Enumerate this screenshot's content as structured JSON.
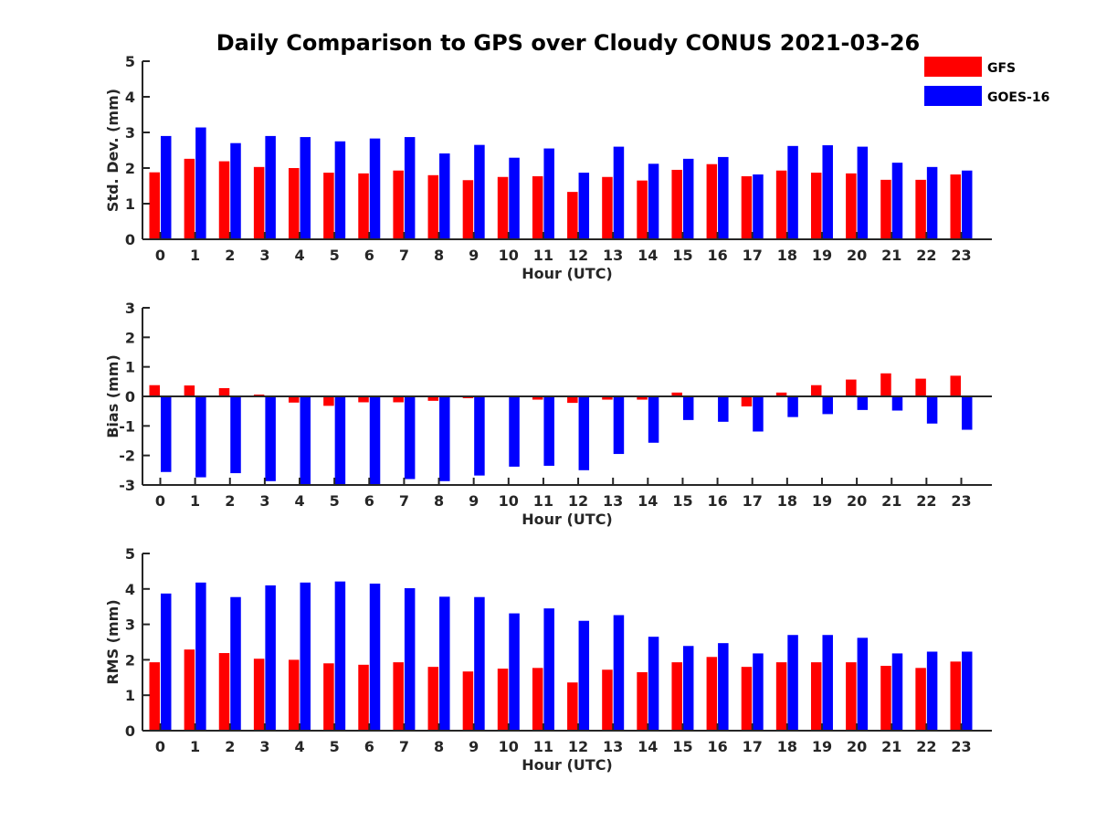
{
  "chart_data": {
    "title": "Daily Comparison to GPS over Cloudy CONUS 2021-03-26",
    "legend": {
      "placement": "top-right",
      "entries": [
        {
          "name": "GFS",
          "color": "#ff0000"
        },
        {
          "name": "GOES-16",
          "color": "#0000ff"
        }
      ]
    },
    "panels": [
      {
        "type": "bar",
        "ylabel": "Std. Dev. (mm)",
        "xlabel": "Hour (UTC)",
        "ylim": [
          0,
          5
        ],
        "yticks": [
          0,
          1,
          2,
          3,
          4,
          5
        ],
        "categories": [
          "0",
          "1",
          "2",
          "3",
          "4",
          "5",
          "6",
          "7",
          "8",
          "9",
          "10",
          "11",
          "12",
          "13",
          "14",
          "15",
          "16",
          "17",
          "18",
          "19",
          "20",
          "21",
          "22",
          "23"
        ],
        "series": [
          {
            "name": "GFS",
            "color": "#ff0000",
            "values": [
              1.88,
              2.26,
              2.19,
              2.03,
              2.0,
              1.87,
              1.85,
              1.93,
              1.8,
              1.66,
              1.75,
              1.77,
              1.33,
              1.75,
              1.65,
              1.95,
              2.11,
              1.77,
              1.93,
              1.87,
              1.85,
              1.67,
              1.67,
              1.82
            ]
          },
          {
            "name": "GOES-16",
            "color": "#0000ff",
            "values": [
              2.9,
              3.14,
              2.7,
              2.9,
              2.87,
              2.75,
              2.83,
              2.87,
              2.41,
              2.65,
              2.29,
              2.55,
              1.87,
              2.6,
              2.12,
              2.26,
              2.31,
              1.82,
              2.62,
              2.64,
              2.6,
              2.15,
              2.03,
              1.93
            ]
          }
        ]
      },
      {
        "type": "bar",
        "ylabel": "Bias (mm)",
        "xlabel": "Hour (UTC)",
        "ylim": [
          -3,
          3
        ],
        "yticks": [
          -3,
          -2,
          -1,
          0,
          1,
          2,
          3
        ],
        "categories": [
          "0",
          "1",
          "2",
          "3",
          "4",
          "5",
          "6",
          "7",
          "8",
          "9",
          "10",
          "11",
          "12",
          "13",
          "14",
          "15",
          "16",
          "17",
          "18",
          "19",
          "20",
          "21",
          "22",
          "23"
        ],
        "series": [
          {
            "name": "GFS",
            "color": "#ff0000",
            "values": [
              0.38,
              0.37,
              0.28,
              0.06,
              -0.21,
              -0.32,
              -0.2,
              -0.2,
              -0.15,
              -0.06,
              0.0,
              -0.11,
              -0.22,
              -0.11,
              -0.11,
              0.13,
              0.0,
              -0.34,
              0.13,
              0.38,
              0.57,
              0.78,
              0.6,
              0.7
            ]
          },
          {
            "name": "GOES-16",
            "color": "#0000ff",
            "values": [
              -2.56,
              -2.74,
              -2.6,
              -2.87,
              -3.0,
              -3.0,
              -3.0,
              -2.8,
              -2.87,
              -2.68,
              -2.38,
              -2.35,
              -2.5,
              -1.95,
              -1.57,
              -0.8,
              -0.86,
              -1.19,
              -0.7,
              -0.6,
              -0.46,
              -0.48,
              -0.92,
              -1.13
            ]
          }
        ]
      },
      {
        "type": "bar",
        "ylabel": "RMS (mm)",
        "xlabel": "Hour (UTC)",
        "ylim": [
          0,
          5
        ],
        "yticks": [
          0,
          1,
          2,
          3,
          4,
          5
        ],
        "categories": [
          "0",
          "1",
          "2",
          "3",
          "4",
          "5",
          "6",
          "7",
          "8",
          "9",
          "10",
          "11",
          "12",
          "13",
          "14",
          "15",
          "16",
          "17",
          "18",
          "19",
          "20",
          "21",
          "22",
          "23"
        ],
        "series": [
          {
            "name": "GFS",
            "color": "#ff0000",
            "values": [
              1.93,
              2.29,
              2.19,
              2.03,
              2.0,
              1.9,
              1.86,
              1.93,
              1.8,
              1.67,
              1.75,
              1.77,
              1.36,
              1.72,
              1.65,
              1.93,
              2.08,
              1.8,
              1.93,
              1.93,
              1.93,
              1.83,
              1.77,
              1.95
            ]
          },
          {
            "name": "GOES-16",
            "color": "#0000ff",
            "values": [
              3.87,
              4.18,
              3.77,
              4.1,
              4.18,
              4.21,
              4.15,
              4.02,
              3.78,
              3.77,
              3.31,
              3.45,
              3.1,
              3.26,
              2.65,
              2.39,
              2.47,
              2.18,
              2.7,
              2.7,
              2.62,
              2.18,
              2.23,
              2.23
            ]
          }
        ]
      }
    ]
  }
}
